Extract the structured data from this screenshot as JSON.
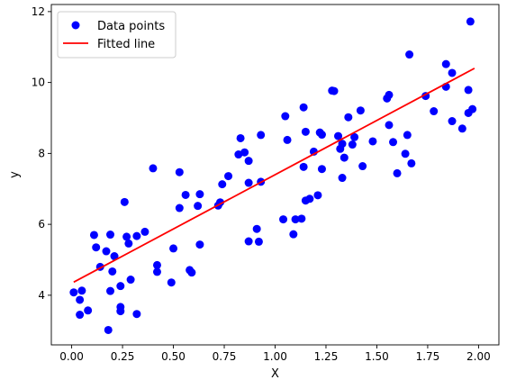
{
  "chart_data": {
    "type": "scatter",
    "title": "",
    "xlabel": "X",
    "ylabel": "y",
    "xlim": [
      -0.1,
      2.1
    ],
    "ylim": [
      2.6,
      12.2
    ],
    "xticks": [
      "0.00",
      "0.25",
      "0.50",
      "0.75",
      "1.00",
      "1.25",
      "1.50",
      "1.75",
      "2.00"
    ],
    "yticks": [
      "4",
      "6",
      "8",
      "10",
      "12"
    ],
    "grid": false,
    "legend_position": "top-left",
    "series": [
      {
        "name": "Data points",
        "kind": "scatter",
        "color": "#0000ff",
        "points": [
          [
            0.01,
            4.08
          ],
          [
            0.04,
            3.87
          ],
          [
            0.05,
            4.13
          ],
          [
            0.04,
            3.45
          ],
          [
            0.08,
            3.57
          ],
          [
            0.11,
            5.7
          ],
          [
            0.12,
            5.35
          ],
          [
            0.14,
            4.8
          ],
          [
            0.17,
            5.24
          ],
          [
            0.19,
            5.71
          ],
          [
            0.19,
            4.12
          ],
          [
            0.18,
            3.02
          ],
          [
            0.2,
            4.67
          ],
          [
            0.21,
            5.1
          ],
          [
            0.24,
            4.26
          ],
          [
            0.24,
            3.55
          ],
          [
            0.24,
            3.67
          ],
          [
            0.26,
            6.63
          ],
          [
            0.27,
            5.65
          ],
          [
            0.28,
            5.46
          ],
          [
            0.29,
            4.44
          ],
          [
            0.32,
            3.47
          ],
          [
            0.32,
            5.67
          ],
          [
            0.36,
            5.79
          ],
          [
            0.4,
            7.58
          ],
          [
            0.42,
            4.66
          ],
          [
            0.42,
            4.85
          ],
          [
            0.49,
            4.36
          ],
          [
            0.5,
            5.32
          ],
          [
            0.53,
            6.46
          ],
          [
            0.53,
            7.47
          ],
          [
            0.56,
            6.83
          ],
          [
            0.58,
            4.71
          ],
          [
            0.59,
            4.64
          ],
          [
            0.62,
            6.52
          ],
          [
            0.63,
            6.85
          ],
          [
            0.63,
            5.43
          ],
          [
            0.72,
            6.53
          ],
          [
            0.73,
            6.62
          ],
          [
            0.74,
            7.13
          ],
          [
            0.77,
            7.36
          ],
          [
            0.82,
            7.97
          ],
          [
            0.83,
            8.43
          ],
          [
            0.85,
            8.03
          ],
          [
            0.87,
            7.79
          ],
          [
            0.87,
            7.17
          ],
          [
            0.87,
            5.52
          ],
          [
            0.91,
            5.87
          ],
          [
            0.92,
            5.51
          ],
          [
            0.93,
            8.52
          ],
          [
            0.93,
            7.2
          ],
          [
            1.04,
            6.14
          ],
          [
            1.05,
            9.05
          ],
          [
            1.06,
            8.38
          ],
          [
            1.09,
            5.72
          ],
          [
            1.1,
            6.14
          ],
          [
            1.13,
            6.16
          ],
          [
            1.14,
            7.62
          ],
          [
            1.14,
            9.3
          ],
          [
            1.15,
            8.61
          ],
          [
            1.15,
            6.67
          ],
          [
            1.17,
            6.72
          ],
          [
            1.19,
            8.05
          ],
          [
            1.21,
            6.82
          ],
          [
            1.22,
            8.59
          ],
          [
            1.23,
            8.53
          ],
          [
            1.23,
            7.56
          ],
          [
            1.28,
            9.77
          ],
          [
            1.29,
            9.76
          ],
          [
            1.31,
            8.49
          ],
          [
            1.32,
            8.13
          ],
          [
            1.33,
            8.27
          ],
          [
            1.33,
            7.31
          ],
          [
            1.34,
            7.88
          ],
          [
            1.36,
            9.02
          ],
          [
            1.38,
            8.25
          ],
          [
            1.39,
            8.46
          ],
          [
            1.42,
            9.21
          ],
          [
            1.43,
            7.64
          ],
          [
            1.48,
            8.34
          ],
          [
            1.55,
            9.55
          ],
          [
            1.56,
            9.65
          ],
          [
            1.56,
            8.8
          ],
          [
            1.58,
            8.32
          ],
          [
            1.6,
            7.44
          ],
          [
            1.64,
            7.99
          ],
          [
            1.65,
            8.52
          ],
          [
            1.66,
            10.79
          ],
          [
            1.67,
            7.72
          ],
          [
            1.74,
            9.62
          ],
          [
            1.78,
            9.19
          ],
          [
            1.84,
            10.52
          ],
          [
            1.84,
            9.88
          ],
          [
            1.87,
            8.91
          ],
          [
            1.87,
            10.27
          ],
          [
            1.92,
            8.7
          ],
          [
            1.95,
            9.79
          ],
          [
            1.95,
            9.14
          ],
          [
            1.96,
            11.72
          ],
          [
            1.97,
            9.25
          ]
        ]
      },
      {
        "name": "Fitted line",
        "kind": "line",
        "color": "#ff0000",
        "x": [
          0.01,
          1.98
        ],
        "y": [
          4.37,
          10.4
        ]
      }
    ]
  }
}
